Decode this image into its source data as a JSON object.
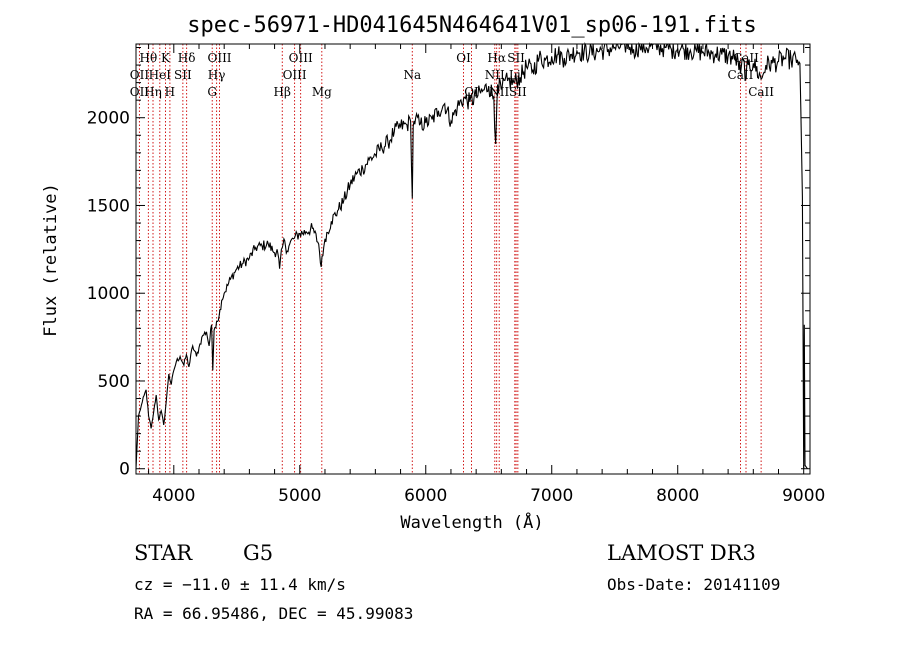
{
  "chart_data": {
    "type": "line",
    "title": "spec-56971-HD041645N464641V01_sp06-191.fits",
    "xlabel": "Wavelength (Å)",
    "ylabel": "Flux (relative)",
    "xlim": [
      3700,
      9050
    ],
    "ylim": [
      -30,
      2420
    ],
    "x_ticks": [
      4000,
      5000,
      6000,
      7000,
      8000,
      9000
    ],
    "y_ticks": [
      0,
      500,
      1000,
      1500,
      2000
    ],
    "x_ticklabels": [
      "4000",
      "5000",
      "6000",
      "7000",
      "8000",
      "9000"
    ],
    "y_ticklabels": [
      "0",
      "500",
      "1000",
      "1500",
      "2000"
    ],
    "grid": false,
    "series": [
      {
        "name": "spectrum",
        "color": "#000000",
        "x": [
          3700,
          3720,
          3750,
          3780,
          3800,
          3820,
          3840,
          3860,
          3880,
          3900,
          3920,
          3940,
          3960,
          3980,
          4000,
          4020,
          4050,
          4080,
          4100,
          4120,
          4150,
          4180,
          4200,
          4230,
          4260,
          4280,
          4300,
          4310,
          4320,
          4340,
          4360,
          4380,
          4400,
          4450,
          4500,
          4550,
          4600,
          4650,
          4700,
          4750,
          4800,
          4820,
          4840,
          4861,
          4880,
          4900,
          4920,
          4950,
          5000,
          5050,
          5100,
          5150,
          5170,
          5190,
          5200,
          5250,
          5300,
          5350,
          5400,
          5450,
          5500,
          5550,
          5600,
          5650,
          5700,
          5750,
          5800,
          5850,
          5880,
          5893,
          5900,
          5920,
          5950,
          6000,
          6050,
          6100,
          6150,
          6200,
          6250,
          6300,
          6350,
          6400,
          6450,
          6500,
          6540,
          6555,
          6563,
          6570,
          6600,
          6650,
          6700,
          6750,
          6800,
          6850,
          6900,
          6950,
          7000,
          7050,
          7100,
          7150,
          7200,
          7300,
          7400,
          7500,
          7600,
          7650,
          7700,
          7750,
          7800,
          7850,
          7900,
          7950,
          8000,
          8050,
          8100,
          8150,
          8200,
          8250,
          8300,
          8350,
          8400,
          8450,
          8480,
          8498,
          8520,
          8542,
          8560,
          8600,
          8662,
          8700,
          8750,
          8800,
          8850,
          8900,
          8950,
          8970,
          8990,
          9000,
          9005,
          9010,
          9030
        ],
        "y": [
          0,
          300,
          380,
          450,
          300,
          230,
          320,
          420,
          280,
          330,
          250,
          380,
          540,
          480,
          560,
          610,
          640,
          590,
          650,
          580,
          700,
          640,
          690,
          760,
          780,
          700,
          820,
          560,
          790,
          840,
          870,
          960,
          1000,
          1080,
          1140,
          1170,
          1200,
          1260,
          1270,
          1280,
          1230,
          1250,
          1140,
          1260,
          1300,
          1240,
          1280,
          1310,
          1340,
          1350,
          1370,
          1280,
          1150,
          1260,
          1310,
          1410,
          1470,
          1530,
          1620,
          1680,
          1710,
          1760,
          1790,
          1830,
          1860,
          1920,
          1950,
          1960,
          1980,
          1540,
          1950,
          2000,
          1960,
          1970,
          1990,
          2040,
          2080,
          1980,
          2060,
          2110,
          2090,
          2120,
          2150,
          2180,
          2120,
          1850,
          2050,
          2190,
          2160,
          2210,
          2200,
          2230,
          2290,
          2270,
          2340,
          2330,
          2350,
          2360,
          2340,
          2360,
          2380,
          2370,
          2385,
          2400,
          2420,
          2390,
          2410,
          2400,
          2415,
          2405,
          2400,
          2390,
          2395,
          2390,
          2385,
          2380,
          2375,
          2370,
          2365,
          2360,
          2350,
          2340,
          2320,
          2250,
          2330,
          2230,
          2300,
          2310,
          2220,
          2300,
          2310,
          2320,
          2340,
          2330,
          2330,
          2310,
          1550,
          0,
          820,
          20,
          0
        ]
      }
    ],
    "line_markers": [
      {
        "label": "Hθ",
        "x": 3798,
        "row": 0
      },
      {
        "label": "OII",
        "x": 3727,
        "row": 1
      },
      {
        "label": "OII",
        "x": 3727,
        "row": 2
      },
      {
        "label": "Hη",
        "x": 3835,
        "row": 2
      },
      {
        "label": "HeI",
        "x": 3889,
        "row": 1
      },
      {
        "label": "K",
        "x": 3934,
        "row": 0
      },
      {
        "label": "H",
        "x": 3969,
        "row": 2
      },
      {
        "label": "SII",
        "x": 4072,
        "row": 1
      },
      {
        "label": "Hδ",
        "x": 4102,
        "row": 0
      },
      {
        "label": "OIII",
        "x": 4363,
        "row": 0
      },
      {
        "label": "Hγ",
        "x": 4340,
        "row": 1
      },
      {
        "label": "G",
        "x": 4305,
        "row": 2
      },
      {
        "label": "Hβ",
        "x": 4861,
        "row": 2
      },
      {
        "label": "OIII",
        "x": 5007,
        "row": 0
      },
      {
        "label": "OIII",
        "x": 4959,
        "row": 1
      },
      {
        "label": "Mg",
        "x": 5175,
        "row": 2
      },
      {
        "label": "Na",
        "x": 5893,
        "row": 1
      },
      {
        "label": "OI",
        "x": 6300,
        "row": 0
      },
      {
        "label": "OI",
        "x": 6363,
        "row": 2
      },
      {
        "label": "Hα",
        "x": 6563,
        "row": 0
      },
      {
        "label": "NII",
        "x": 6548,
        "row": 1
      },
      {
        "label": "NII",
        "x": 6583,
        "row": 2
      },
      {
        "label": "SII",
        "x": 6717,
        "row": 0
      },
      {
        "label": "Li",
        "x": 6707,
        "row": 1
      },
      {
        "label": "SII",
        "x": 6731,
        "row": 2
      },
      {
        "label": "CaII",
        "x": 8542,
        "row": 0
      },
      {
        "label": "CaII",
        "x": 8498,
        "row": 1
      },
      {
        "label": "CaII",
        "x": 8662,
        "row": 2
      }
    ],
    "marker_color": "#cc0000"
  },
  "info": {
    "object_class": "STAR",
    "subclass": "G5",
    "survey": "LAMOST DR3",
    "cz": "cz = −11.0 ± 11.4 km/s",
    "obs_date": "Obs-Date: 20141109",
    "coords": "RA =  66.95486, DEC =  45.99083"
  }
}
